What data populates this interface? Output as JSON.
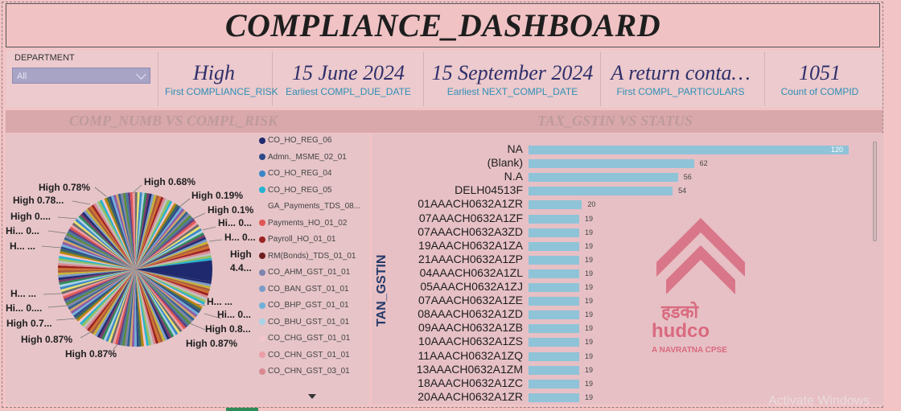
{
  "header": {
    "title": "COMPLIANCE_DASHBOARD"
  },
  "slicer": {
    "label": "DEPARTMENT",
    "value": "All"
  },
  "kpis": [
    {
      "value": "High",
      "label": "First COMPLIANCE_RISK"
    },
    {
      "value": "15 June 2024",
      "label": "Earliest COMPL_DUE_DATE"
    },
    {
      "value": "15 September 2024",
      "label": "Earliest NEXT_COMPL_DATE"
    },
    {
      "value": "A return conta…",
      "label": "First COMPL_PARTICULARS"
    },
    {
      "value": "1051",
      "label": "Count of COMPID"
    }
  ],
  "sections": {
    "left_title": "COMP_NUMB VS COMPL_RISK",
    "right_title": "TAX_GSTIN VS STATUS"
  },
  "legend": [
    {
      "label": "CO_HO_REG_06",
      "color": "#1f2a6e"
    },
    {
      "label": "Admn._MSME_02_01",
      "color": "#2d4a8a"
    },
    {
      "label": "CO_HO_REG_04",
      "color": "#3b86c7"
    },
    {
      "label": "CO_HO_REG_05",
      "color": "#24b3d1"
    },
    {
      "label": "GA_Payments_TDS_08...",
      "color": ""
    },
    {
      "label": "Payments_HO_01_02",
      "color": "#e05555"
    },
    {
      "label": "Payroll_HO_01_01",
      "color": "#9a2222"
    },
    {
      "label": "RM(Bonds)_TDS_01_01",
      "color": "#6e1d1d"
    },
    {
      "label": "CO_AHM_GST_01_01",
      "color": "#7e86ad"
    },
    {
      "label": "CO_BAN_GST_01_01",
      "color": "#7b9cc9"
    },
    {
      "label": "CO_BHP_GST_01_01",
      "color": "#6fb0d8"
    },
    {
      "label": "CO_BHU_GST_01_01",
      "color": "#a8d3e6"
    },
    {
      "label": "CO_CHG_GST_01_01",
      "color": "#f2c6cc"
    },
    {
      "label": "CO_CHN_GST_01_01",
      "color": "#ec9ea6"
    },
    {
      "label": "CO_CHN_GST_03_01",
      "color": "#d98990"
    }
  ],
  "pie_labels": [
    "High 0.78%",
    "High 0.68%",
    "High 0.78...",
    "High 0.19%",
    "High 0....",
    "High 0.1%",
    "Hi... 0...",
    "Hi... 0...",
    "H... ...",
    "H... 0...",
    "High",
    "4.4...",
    "H... ...",
    "Hi... 0....",
    "H... ...",
    "Hi... 0...",
    "High 0.7...",
    "High 0.8...",
    "High 0.87%",
    "High 0.87%",
    "High 0.87%"
  ],
  "bar_chart": {
    "axis_title": "TAN_GSTIN",
    "categories": [
      "NA",
      "(Blank)",
      "N.A",
      "DELH04513F",
      "01AAACH0632A1ZR",
      "07AAACH0632A1ZF",
      "07AAACH0632A3ZD",
      "19AAACH0632A1ZA",
      "21AAACH0632A1ZP",
      "04AAACH0632A1ZL",
      "05AAACH0632A1ZJ",
      "07AAACH0632A1ZE",
      "08AAACH0632A1ZD",
      "09AAACH0632A1ZB",
      "10AAACH0632A1ZS",
      "11AAACH0632A1ZQ",
      "13AAACH0632A1ZM",
      "18AAACH0632A1ZC",
      "20AAACH0632A1ZR"
    ],
    "values": [
      120,
      62,
      56,
      54,
      20,
      19,
      19,
      19,
      19,
      19,
      19,
      19,
      19,
      19,
      19,
      19,
      19,
      19,
      19
    ]
  },
  "logo": {
    "hindi": "हडको",
    "name": "hudco",
    "tagline": "A NAVRATNA CPSE"
  },
  "watermark": "Activate Windows"
}
